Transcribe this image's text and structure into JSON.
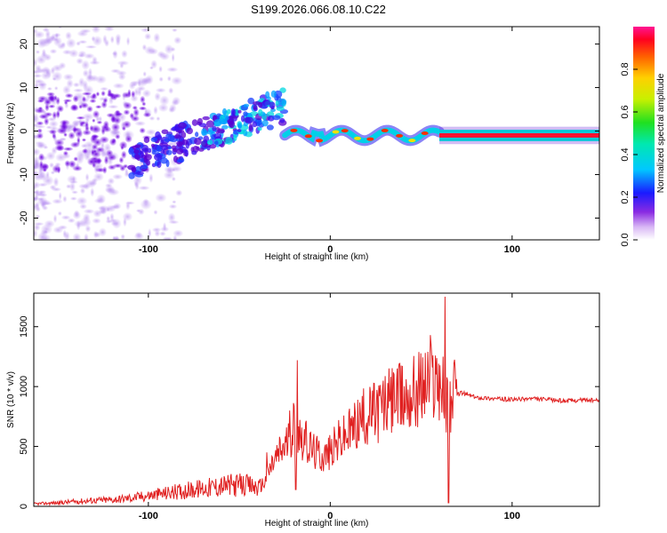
{
  "figure_title": "S199.2026.066.08.10.C22",
  "colors": {
    "snr_line": "#e02020",
    "frame": "#000000",
    "background": "#ffffff"
  },
  "chart_data": [
    {
      "type": "heatmap",
      "xlabel": "Height of straight line (km)",
      "ylabel": "Frequency (Hz)",
      "xlim": [
        -163,
        148
      ],
      "ylim": [
        -25,
        24
      ],
      "x_ticks": [
        "-100",
        "0",
        "100"
      ],
      "y_ticks": [
        "20",
        "10",
        "0",
        "-10",
        "-20"
      ],
      "colorbar": {
        "label": "Normalized spectral amplitude",
        "range": [
          0,
          1
        ],
        "ticks": [
          "0.0",
          "0.2",
          "0.4",
          "0.6",
          "0.8"
        ],
        "colormap": "rainbow (magenta-blue-cyan-green-yellow-red)"
      },
      "features": [
        {
          "region": "x -163 to -110",
          "description": "scattered faint purple noise across full frequency range"
        },
        {
          "region": "x -110 to -25",
          "frequency_trend": "rising from about -7 Hz to +6 Hz",
          "amplitude": "0.2-0.4"
        },
        {
          "region": "x -25 to 60",
          "frequency": "about 0 to -2 Hz",
          "amplitude": "0.3-0.9"
        },
        {
          "region": "x 60 to 148",
          "frequency": "about -1 Hz",
          "amplitude": "about 1.0"
        }
      ]
    },
    {
      "type": "line",
      "xlabel": "Height of straight line (km)",
      "ylabel": "SNR (10 * v/v)",
      "xlim": [
        -163,
        148
      ],
      "ylim": [
        0,
        1780
      ],
      "x_ticks": [
        "-100",
        "0",
        "100"
      ],
      "y_ticks": [
        "0",
        "500",
        "1000",
        "1500"
      ],
      "series": [
        {
          "x": [
            -163,
            -150,
            -140,
            -130,
            -120,
            -110,
            -100,
            -90,
            -80,
            -70,
            -60,
            -50,
            -40,
            -36,
            -32,
            -28,
            -24,
            -20,
            -16,
            -12,
            -8,
            -4,
            0,
            5,
            10,
            15,
            20,
            25,
            30,
            35,
            40,
            45,
            50,
            55,
            60,
            63,
            65,
            68,
            72,
            80,
            90,
            100,
            110,
            120,
            130,
            140,
            148
          ],
          "y": [
            20,
            30,
            40,
            50,
            55,
            70,
            90,
            110,
            130,
            150,
            170,
            180,
            160,
            200,
            350,
            450,
            520,
            700,
            600,
            500,
            450,
            420,
            450,
            550,
            600,
            700,
            750,
            800,
            850,
            880,
            900,
            950,
            1000,
            1050,
            1100,
            900,
            850,
            920,
            950,
            910,
            900,
            890,
            900,
            890,
            880,
            890,
            880
          ]
        }
      ],
      "spikes": [
        {
          "x": -35,
          "y": 450
        },
        {
          "x": -18,
          "y": 1220
        },
        {
          "x": -19,
          "y": 140
        },
        {
          "x": 35,
          "y": 1100
        },
        {
          "x": 55,
          "y": 1430
        },
        {
          "x": 63,
          "y": 1750
        },
        {
          "x": 65,
          "y": 30
        }
      ]
    }
  ]
}
